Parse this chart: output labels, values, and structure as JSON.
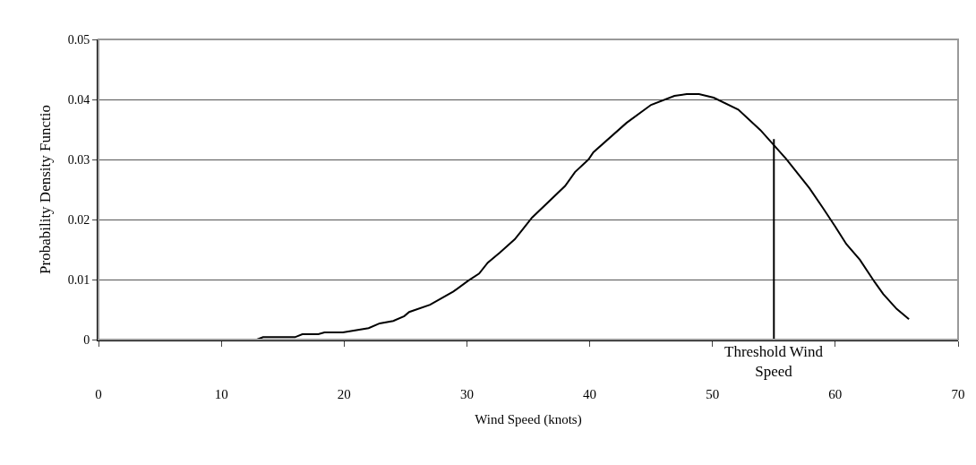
{
  "chart_data": {
    "type": "line",
    "xlabel": "Wind Speed (knots)",
    "ylabel": "Probability Density Functio",
    "xlim": [
      0,
      70
    ],
    "xticks": [
      0,
      10,
      20,
      30,
      40,
      50,
      60,
      70
    ],
    "ylim": [
      0,
      0.05
    ],
    "yticks": [
      0,
      0.01,
      0.02,
      0.03,
      0.04,
      0.05
    ],
    "grid": "y",
    "marker": "none",
    "line_style": "solid",
    "series": [
      {
        "color": "#000000",
        "x": [
          0.9,
          12.9,
          13.4,
          16.0,
          16.6,
          17.9,
          18.4,
          19.9,
          22.0,
          22.9,
          24.0,
          24.9,
          25.3,
          27.0,
          28.9,
          30.1,
          31.0,
          31.7,
          32.7,
          33.9,
          35.3,
          38.0,
          38.8,
          39.9,
          40.3,
          43.0,
          45.0,
          46.9,
          47.9,
          48.9,
          50.1,
          52.1,
          53.9,
          56.0,
          57.9,
          59.0,
          60.0,
          60.9,
          62.0,
          63.2,
          63.9,
          65.0,
          66.0
        ],
        "values": [
          0,
          0,
          0.0004,
          0.0004,
          0.0009,
          0.0009,
          0.0012,
          0.0012,
          0.0019,
          0.0027,
          0.0031,
          0.0039,
          0.0046,
          0.0058,
          0.008,
          0.0098,
          0.011,
          0.0128,
          0.0145,
          0.0167,
          0.0203,
          0.0256,
          0.0279,
          0.03,
          0.0312,
          0.0361,
          0.0391,
          0.0406,
          0.0409,
          0.0409,
          0.0403,
          0.0383,
          0.0349,
          0.0301,
          0.0252,
          0.0219,
          0.0188,
          0.0159,
          0.0133,
          0.0096,
          0.0076,
          0.0051,
          0.0034
        ]
      },
      {
        "name": "Threshold Wind\nSpeed",
        "color": "#000000",
        "x": [
          55,
          55
        ],
        "values": [
          0,
          0.0334
        ]
      }
    ]
  }
}
